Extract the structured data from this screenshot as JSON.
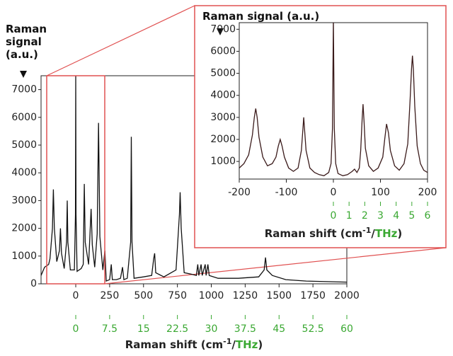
{
  "chart_data": [
    {
      "type": "line",
      "ylabel": "Raman signal (a.u.)",
      "xlabel": {
        "text": "Raman shift (cm",
        "sup": "-1",
        "sep": "/",
        "unit2": "THz",
        "close": ")"
      },
      "xlim": [
        -256,
        2000
      ],
      "xticks": [
        0,
        250,
        500,
        750,
        1000,
        1250,
        1500,
        1750,
        2000
      ],
      "x2lim": [
        -7.68,
        60
      ],
      "x2ticks": [
        0,
        7.5,
        15,
        22.5,
        30,
        37.5,
        45,
        52.5,
        60
      ],
      "ylim": [
        0,
        7500
      ],
      "yticks": [
        0,
        1000,
        2000,
        3000,
        4000,
        5000,
        6000,
        7000
      ],
      "x": [
        -256,
        -230,
        -200,
        -190,
        -172,
        -165,
        -158,
        -140,
        -120,
        -113,
        -105,
        -85,
        -68,
        -63,
        -58,
        -40,
        -10,
        -2,
        0,
        2,
        10,
        40,
        55,
        63,
        70,
        95,
        113,
        122,
        140,
        158,
        168,
        178,
        200,
        215,
        225,
        250,
        262,
        270,
        300,
        330,
        345,
        355,
        380,
        405,
        410,
        415,
        430,
        500,
        560,
        575,
        582,
        590,
        650,
        740,
        765,
        770,
        778,
        800,
        850,
        890,
        900,
        908,
        925,
        933,
        955,
        962,
        975,
        985,
        1050,
        1200,
        1350,
        1390,
        1400,
        1410,
        1450,
        1550,
        1700,
        1850,
        2000
      ],
      "series": [
        {
          "color": "#111111",
          "values": [
            300,
            600,
            700,
            900,
            2000,
            3400,
            2000,
            800,
            1200,
            2000,
            1100,
            550,
            1500,
            3000,
            1500,
            500,
            500,
            2500,
            7500,
            2500,
            450,
            550,
            700,
            3600,
            1500,
            700,
            2700,
            1400,
            600,
            1800,
            5800,
            1700,
            500,
            1200,
            100,
            150,
            700,
            150,
            150,
            200,
            600,
            150,
            200,
            1500,
            5300,
            1500,
            200,
            250,
            300,
            900,
            1100,
            400,
            250,
            500,
            2500,
            3300,
            2000,
            400,
            350,
            300,
            700,
            300,
            700,
            300,
            700,
            300,
            700,
            300,
            200,
            200,
            250,
            500,
            950,
            500,
            300,
            150,
            100,
            80,
            60
          ]
        }
      ]
    },
    {
      "type": "line",
      "ylabel": "Raman signal (a.u.)",
      "xlabel": {
        "text": "Raman shift (cm",
        "sup": "-1",
        "sep": "/",
        "unit2": "THz",
        "close": ")"
      },
      "xlim": [
        -200,
        200
      ],
      "xticks": [
        -200,
        -100,
        0,
        100,
        200
      ],
      "x2lim": [
        -6,
        6
      ],
      "x2ticks": [
        0,
        1,
        2,
        3,
        4,
        5,
        6
      ],
      "ylim": [
        200,
        7300
      ],
      "yticks": [
        1000,
        2000,
        3000,
        4000,
        5000,
        6000,
        7000
      ],
      "x": [
        -200,
        -190,
        -180,
        -172,
        -168,
        -165,
        -162,
        -158,
        -150,
        -140,
        -130,
        -122,
        -117,
        -113,
        -109,
        -104,
        -95,
        -85,
        -75,
        -68,
        -65,
        -63,
        -61,
        -58,
        -50,
        -40,
        -30,
        -20,
        -10,
        -5,
        -2,
        0,
        2,
        5,
        10,
        20,
        30,
        40,
        45,
        50,
        55,
        58,
        61,
        63,
        65,
        68,
        75,
        85,
        95,
        105,
        109,
        113,
        117,
        121,
        130,
        140,
        150,
        158,
        163,
        166,
        168,
        170,
        173,
        178,
        185,
        192,
        200
      ],
      "series": [
        {
          "color": "#3a1a1a",
          "values": [
            700,
            900,
            1300,
            2200,
            3000,
            3400,
            3000,
            2100,
            1200,
            800,
            900,
            1200,
            1700,
            2000,
            1700,
            1200,
            700,
            550,
            700,
            1500,
            2400,
            3000,
            2400,
            1500,
            700,
            500,
            400,
            350,
            500,
            900,
            2500,
            7500,
            2500,
            900,
            450,
            350,
            400,
            550,
            650,
            500,
            700,
            1500,
            2900,
            3600,
            2900,
            1600,
            800,
            550,
            700,
            1200,
            2000,
            2700,
            2300,
            1500,
            800,
            600,
            900,
            1800,
            3800,
            5200,
            5800,
            5200,
            3500,
            1700,
            900,
            600,
            500
          ]
        }
      ]
    }
  ]
}
